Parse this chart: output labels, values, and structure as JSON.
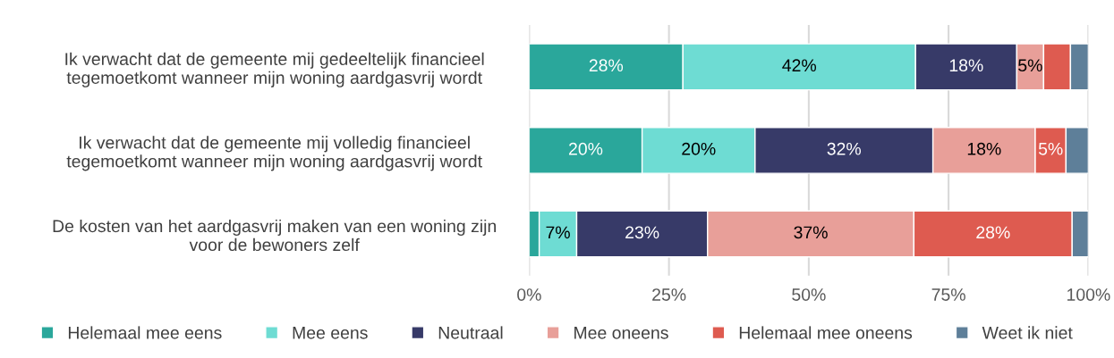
{
  "chart_data": {
    "type": "bar",
    "orientation": "horizontal",
    "stacked": true,
    "categories": [
      "Ik verwacht dat de gemeente mij gedeeltelijk financieel\ntegemoetkomt wanneer mijn woning aardgasvrij wordt",
      "Ik verwacht dat de gemeente mij volledig financieel\ntegemoetkomt wanneer mijn woning aardgasvrij wordt",
      "De kosten van het aardgasvrij maken van een woning zijn\nvoor de bewoners zelf"
    ],
    "series": [
      {
        "name": "Helemaal mee eens",
        "color": "#2aa79b",
        "values": [
          27.5,
          20.2,
          1.8
        ],
        "value_labels": [
          "28%",
          "20%",
          null
        ]
      },
      {
        "name": "Mee eens",
        "color": "#6edcd3",
        "values": [
          41.6,
          20.2,
          6.7
        ],
        "value_labels": [
          "42%",
          "20%",
          "7%"
        ]
      },
      {
        "name": "Neutraal",
        "color": "#373a68",
        "values": [
          18.1,
          31.8,
          23.4
        ],
        "value_labels": [
          "18%",
          "32%",
          "23%"
        ]
      },
      {
        "name": "Mee oneens",
        "color": "#e89f99",
        "values": [
          4.8,
          18.3,
          36.9
        ],
        "value_labels": [
          "5%",
          "18%",
          "37%"
        ]
      },
      {
        "name": "Helemaal mee oneens",
        "color": "#de5b50",
        "values": [
          4.8,
          5.5,
          28.3
        ],
        "value_labels": [
          null,
          "5%",
          "28%"
        ]
      },
      {
        "name": "Weet ik niet",
        "color": "#5e7f99",
        "values": [
          3.2,
          4.0,
          2.9
        ],
        "value_labels": [
          null,
          null,
          null
        ]
      }
    ],
    "xlim": [
      0,
      100
    ],
    "xticks": [
      {
        "value": 0,
        "label": "0%"
      },
      {
        "value": 25,
        "label": "25%"
      },
      {
        "value": 50,
        "label": "50%"
      },
      {
        "value": 75,
        "label": "75%"
      },
      {
        "value": 100,
        "label": "100%"
      }
    ],
    "grid": "x",
    "legend": "bottom"
  }
}
